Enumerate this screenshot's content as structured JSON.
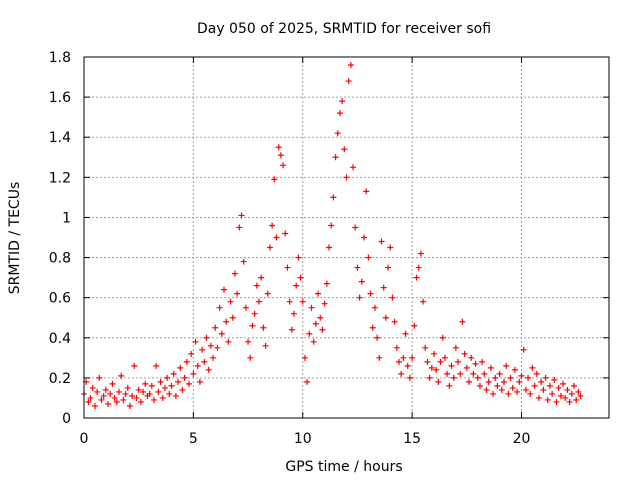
{
  "chart_data": {
    "type": "scatter",
    "title": "Day 050 of 2025, SRMTID for receiver sofi",
    "xlabel": "GPS time / hours",
    "ylabel": "SRMTID / TECUs",
    "xlim": [
      0,
      24
    ],
    "ylim": [
      0,
      1.8
    ],
    "x_ticks": [
      0,
      5,
      10,
      15,
      20
    ],
    "x_tick_labels": [
      "0",
      "5",
      "10",
      "15",
      "20"
    ],
    "y_ticks": [
      0,
      0.2,
      0.4,
      0.6,
      0.8,
      1.0,
      1.2,
      1.4,
      1.6,
      1.8
    ],
    "y_tick_labels": [
      "0",
      "0.2",
      "0.4",
      "0.6",
      "0.8",
      "1",
      "1.2",
      "1.4",
      "1.6",
      "1.8"
    ],
    "grid": true,
    "marker": "+",
    "color": "#ff0000",
    "series": [
      {
        "name": "SRMTID",
        "points": [
          [
            0.0,
            0.12
          ],
          [
            0.1,
            0.18
          ],
          [
            0.2,
            0.08
          ],
          [
            0.3,
            0.1
          ],
          [
            0.4,
            0.15
          ],
          [
            0.5,
            0.06
          ],
          [
            0.6,
            0.13
          ],
          [
            0.7,
            0.2
          ],
          [
            0.8,
            0.09
          ],
          [
            0.9,
            0.11
          ],
          [
            1.0,
            0.14
          ],
          [
            1.1,
            0.07
          ],
          [
            1.2,
            0.12
          ],
          [
            1.3,
            0.17
          ],
          [
            1.4,
            0.1
          ],
          [
            1.5,
            0.08
          ],
          [
            1.6,
            0.13
          ],
          [
            1.7,
            0.21
          ],
          [
            1.8,
            0.09
          ],
          [
            1.9,
            0.12
          ],
          [
            2.0,
            0.15
          ],
          [
            2.1,
            0.06
          ],
          [
            2.2,
            0.11
          ],
          [
            2.3,
            0.26
          ],
          [
            2.4,
            0.1
          ],
          [
            2.5,
            0.14
          ],
          [
            2.6,
            0.08
          ],
          [
            2.7,
            0.13
          ],
          [
            2.8,
            0.17
          ],
          [
            2.9,
            0.11
          ],
          [
            3.0,
            0.12
          ],
          [
            3.1,
            0.16
          ],
          [
            3.2,
            0.09
          ],
          [
            3.3,
            0.26
          ],
          [
            3.4,
            0.13
          ],
          [
            3.5,
            0.18
          ],
          [
            3.6,
            0.1
          ],
          [
            3.7,
            0.15
          ],
          [
            3.8,
            0.2
          ],
          [
            3.9,
            0.12
          ],
          [
            4.0,
            0.16
          ],
          [
            4.1,
            0.22
          ],
          [
            4.2,
            0.11
          ],
          [
            4.3,
            0.18
          ],
          [
            4.4,
            0.25
          ],
          [
            4.5,
            0.14
          ],
          [
            4.6,
            0.2
          ],
          [
            4.7,
            0.28
          ],
          [
            4.8,
            0.17
          ],
          [
            4.9,
            0.32
          ],
          [
            5.0,
            0.22
          ],
          [
            5.1,
            0.38
          ],
          [
            5.2,
            0.26
          ],
          [
            5.3,
            0.18
          ],
          [
            5.4,
            0.34
          ],
          [
            5.5,
            0.28
          ],
          [
            5.6,
            0.4
          ],
          [
            5.7,
            0.24
          ],
          [
            5.8,
            0.36
          ],
          [
            5.9,
            0.3
          ],
          [
            6.0,
            0.45
          ],
          [
            6.1,
            0.35
          ],
          [
            6.2,
            0.55
          ],
          [
            6.3,
            0.42
          ],
          [
            6.4,
            0.64
          ],
          [
            6.5,
            0.48
          ],
          [
            6.6,
            0.38
          ],
          [
            6.7,
            0.58
          ],
          [
            6.8,
            0.5
          ],
          [
            6.9,
            0.72
          ],
          [
            7.0,
            0.62
          ],
          [
            7.1,
            0.95
          ],
          [
            7.2,
            1.01
          ],
          [
            7.3,
            0.78
          ],
          [
            7.4,
            0.55
          ],
          [
            7.5,
            0.38
          ],
          [
            7.6,
            0.3
          ],
          [
            7.7,
            0.46
          ],
          [
            7.8,
            0.52
          ],
          [
            7.9,
            0.66
          ],
          [
            8.0,
            0.58
          ],
          [
            8.1,
            0.7
          ],
          [
            8.2,
            0.45
          ],
          [
            8.3,
            0.36
          ],
          [
            8.4,
            0.62
          ],
          [
            8.5,
            0.85
          ],
          [
            8.6,
            0.96
          ],
          [
            8.7,
            1.19
          ],
          [
            8.8,
            0.9
          ],
          [
            8.9,
            1.35
          ],
          [
            9.0,
            1.31
          ],
          [
            9.1,
            1.26
          ],
          [
            9.2,
            0.92
          ],
          [
            9.3,
            0.75
          ],
          [
            9.4,
            0.58
          ],
          [
            9.5,
            0.44
          ],
          [
            9.6,
            0.52
          ],
          [
            9.7,
            0.66
          ],
          [
            9.8,
            0.8
          ],
          [
            9.9,
            0.7
          ],
          [
            10.0,
            0.58
          ],
          [
            10.1,
            0.3
          ],
          [
            10.2,
            0.18
          ],
          [
            10.3,
            0.42
          ],
          [
            10.4,
            0.55
          ],
          [
            10.5,
            0.38
          ],
          [
            10.6,
            0.47
          ],
          [
            10.7,
            0.62
          ],
          [
            10.8,
            0.5
          ],
          [
            10.9,
            0.44
          ],
          [
            11.0,
            0.57
          ],
          [
            11.1,
            0.67
          ],
          [
            11.2,
            0.85
          ],
          [
            11.3,
            0.96
          ],
          [
            11.4,
            1.1
          ],
          [
            11.5,
            1.3
          ],
          [
            11.6,
            1.42
          ],
          [
            11.7,
            1.52
          ],
          [
            11.8,
            1.58
          ],
          [
            11.9,
            1.34
          ],
          [
            12.0,
            1.2
          ],
          [
            12.1,
            1.68
          ],
          [
            12.2,
            1.76
          ],
          [
            12.3,
            1.25
          ],
          [
            12.4,
            0.95
          ],
          [
            12.5,
            0.75
          ],
          [
            12.6,
            0.6
          ],
          [
            12.7,
            0.68
          ],
          [
            12.8,
            0.9
          ],
          [
            12.9,
            1.13
          ],
          [
            13.0,
            0.8
          ],
          [
            13.1,
            0.62
          ],
          [
            13.2,
            0.45
          ],
          [
            13.3,
            0.55
          ],
          [
            13.4,
            0.4
          ],
          [
            13.5,
            0.3
          ],
          [
            13.6,
            0.88
          ],
          [
            13.7,
            0.65
          ],
          [
            13.8,
            0.5
          ],
          [
            13.9,
            0.75
          ],
          [
            14.0,
            0.85
          ],
          [
            14.1,
            0.6
          ],
          [
            14.2,
            0.48
          ],
          [
            14.3,
            0.35
          ],
          [
            14.4,
            0.28
          ],
          [
            14.5,
            0.22
          ],
          [
            14.6,
            0.3
          ],
          [
            14.7,
            0.42
          ],
          [
            14.8,
            0.26
          ],
          [
            14.9,
            0.2
          ],
          [
            15.0,
            0.3
          ],
          [
            15.1,
            0.46
          ],
          [
            15.2,
            0.7
          ],
          [
            15.3,
            0.75
          ],
          [
            15.4,
            0.82
          ],
          [
            15.5,
            0.58
          ],
          [
            15.6,
            0.35
          ],
          [
            15.7,
            0.28
          ],
          [
            15.8,
            0.2
          ],
          [
            15.9,
            0.25
          ],
          [
            16.0,
            0.32
          ],
          [
            16.1,
            0.24
          ],
          [
            16.2,
            0.18
          ],
          [
            16.3,
            0.28
          ],
          [
            16.4,
            0.4
          ],
          [
            16.5,
            0.3
          ],
          [
            16.6,
            0.22
          ],
          [
            16.7,
            0.16
          ],
          [
            16.8,
            0.26
          ],
          [
            16.9,
            0.2
          ],
          [
            17.0,
            0.35
          ],
          [
            17.1,
            0.28
          ],
          [
            17.2,
            0.22
          ],
          [
            17.3,
            0.48
          ],
          [
            17.4,
            0.32
          ],
          [
            17.5,
            0.25
          ],
          [
            17.6,
            0.18
          ],
          [
            17.7,
            0.3
          ],
          [
            17.8,
            0.22
          ],
          [
            17.9,
            0.27
          ],
          [
            18.0,
            0.2
          ],
          [
            18.1,
            0.16
          ],
          [
            18.2,
            0.28
          ],
          [
            18.3,
            0.22
          ],
          [
            18.4,
            0.14
          ],
          [
            18.5,
            0.18
          ],
          [
            18.6,
            0.25
          ],
          [
            18.7,
            0.12
          ],
          [
            18.8,
            0.2
          ],
          [
            18.9,
            0.16
          ],
          [
            19.0,
            0.22
          ],
          [
            19.1,
            0.14
          ],
          [
            19.2,
            0.18
          ],
          [
            19.3,
            0.26
          ],
          [
            19.4,
            0.12
          ],
          [
            19.5,
            0.2
          ],
          [
            19.6,
            0.15
          ],
          [
            19.7,
            0.24
          ],
          [
            19.8,
            0.13
          ],
          [
            19.9,
            0.18
          ],
          [
            20.0,
            0.21
          ],
          [
            20.1,
            0.34
          ],
          [
            20.2,
            0.14
          ],
          [
            20.3,
            0.2
          ],
          [
            20.4,
            0.12
          ],
          [
            20.5,
            0.25
          ],
          [
            20.6,
            0.16
          ],
          [
            20.7,
            0.22
          ],
          [
            20.8,
            0.1
          ],
          [
            20.9,
            0.18
          ],
          [
            21.0,
            0.14
          ],
          [
            21.1,
            0.2
          ],
          [
            21.2,
            0.09
          ],
          [
            21.3,
            0.16
          ],
          [
            21.4,
            0.12
          ],
          [
            21.5,
            0.19
          ],
          [
            21.6,
            0.08
          ],
          [
            21.7,
            0.15
          ],
          [
            21.8,
            0.11
          ],
          [
            21.9,
            0.17
          ],
          [
            22.0,
            0.1
          ],
          [
            22.1,
            0.14
          ],
          [
            22.2,
            0.08
          ],
          [
            22.3,
            0.12
          ],
          [
            22.4,
            0.16
          ],
          [
            22.5,
            0.09
          ],
          [
            22.6,
            0.13
          ],
          [
            22.7,
            0.11
          ]
        ]
      }
    ]
  }
}
